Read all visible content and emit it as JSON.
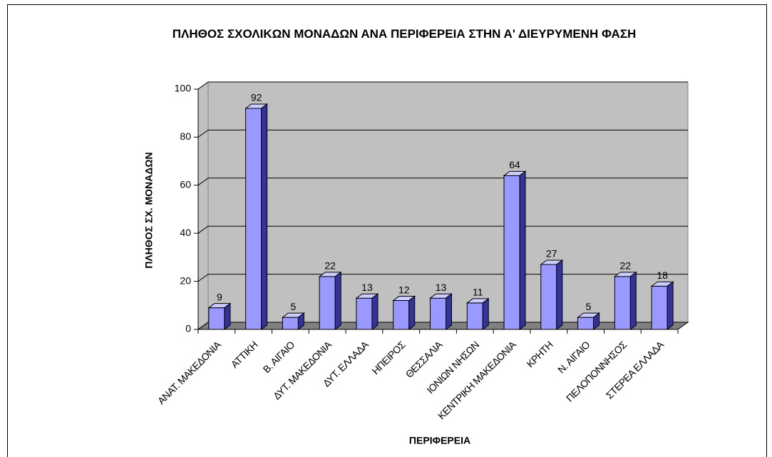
{
  "chart_data": {
    "type": "bar3d",
    "title": "ΠΛΗΘΟΣ ΣΧΟΛΙΚΩΝ ΜΟΝΑΔΩΝ ΑΝΑ ΠΕΡΙΦΕΡΕΙΑ ΣΤΗΝ Α' ΔΙΕΥΡΥΜΕΝΗ ΦΑΣΗ",
    "x_label": "ΠΕΡΙΦΕΡΕΙΑ",
    "y_label": "ΠΛΗΘΟΣ ΣΧ. ΜΟΝΑΔΩΝ",
    "categories": [
      "ΑΝΑΤ. ΜΑΚΕΔΟΝΙΑ",
      "ΑΤΤΙΚΗ",
      "Β. ΑΙΓΑΙΟ",
      "ΔΥΤ. ΜΑΚΕΔΟΝΙΑ",
      "ΔΥΤ. ΕΛΛΑΔΑ",
      "ΗΠΕΙΡΟΣ",
      "ΘΕΣΣΑΛΙΑ",
      "ΙΟΝΙΩΝ ΝΗΣΩΝ",
      "ΚΕΝΤΡΙΚΗ ΜΑΚΕΔΟΝΙΑ",
      "ΚΡΗΤΗ",
      "Ν. ΑΙΓΑΙΟ",
      "ΠΕΛΟΠΟΝΝΗΣΟΣ",
      "ΣΤΕΡΕΑ ΕΛΛΑΔΑ"
    ],
    "values": [
      9,
      92,
      5,
      22,
      13,
      12,
      13,
      11,
      64,
      27,
      5,
      22,
      18
    ],
    "color": "#9999ff",
    "ylim": [
      0,
      100
    ],
    "yticks": [
      0,
      20,
      40,
      60,
      80,
      100
    ],
    "grid": true
  }
}
